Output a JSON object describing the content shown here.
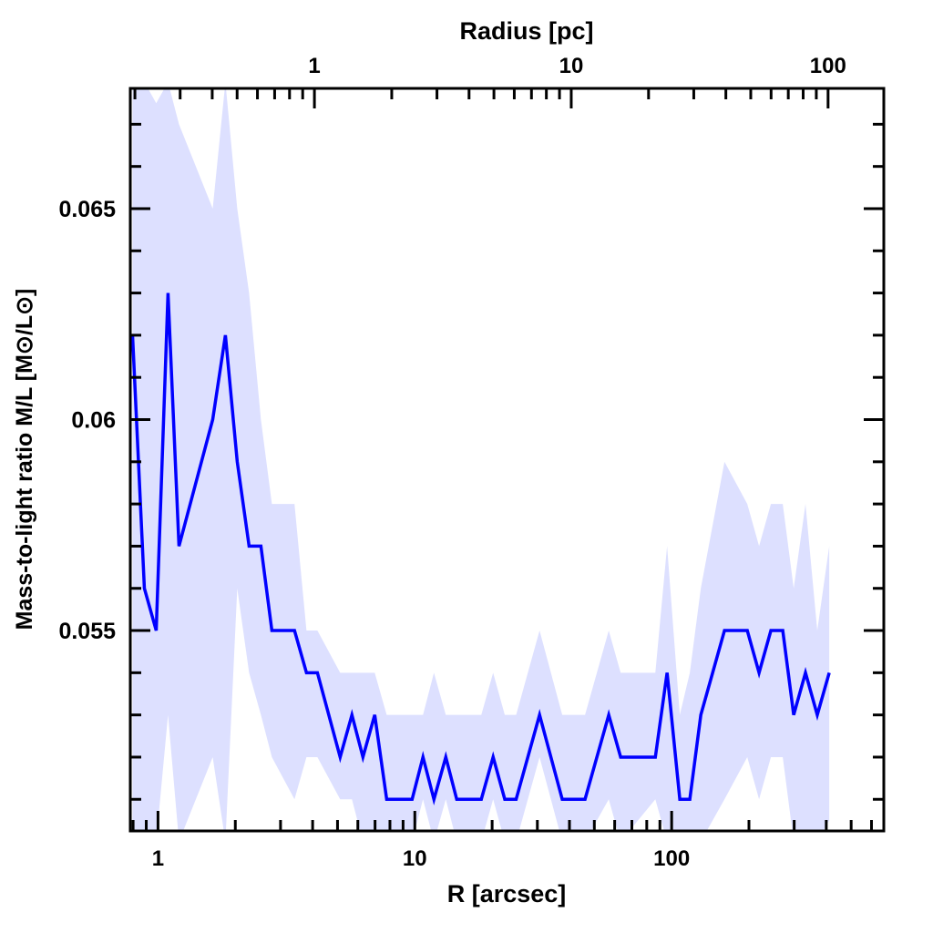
{
  "chart_data": {
    "type": "line",
    "title": "",
    "xlabel": "R [arcsec]",
    "ylabel": "Mass-to-light ratio M/L [M⊙/L⊙]",
    "top_xlabel": "Radius [pc]",
    "xscale": "log",
    "xlim": [
      0.78,
      670
    ],
    "ylim": [
      0.05025,
      0.06785
    ],
    "pc_per_arcsec": 0.246,
    "x_ticklabels": [
      {
        "value": 1,
        "label": "1"
      },
      {
        "value": 10,
        "label": "10"
      },
      {
        "value": 100,
        "label": "100"
      }
    ],
    "top_ticklabels": [
      {
        "value": 1,
        "label": "1"
      },
      {
        "value": 10,
        "label": "10"
      },
      {
        "value": 100,
        "label": "100"
      }
    ],
    "y_ticklabels": [
      {
        "value": 0.055,
        "label": "0.055"
      },
      {
        "value": 0.06,
        "label": "0.06"
      },
      {
        "value": 0.065,
        "label": "0.065"
      }
    ],
    "y_minor_step": 0.001,
    "line_color": "#0000ff",
    "band_color": "#dde0ff",
    "series": [
      {
        "name": "M/L",
        "x": [
          0.796,
          0.885,
          0.984,
          1.094,
          1.207,
          1.633,
          1.83,
          2.035,
          2.263,
          2.516,
          2.776,
          3.4,
          3.785,
          4.175,
          5.12,
          5.69,
          6.28,
          6.98,
          7.77,
          9.76,
          10.76,
          11.87,
          13.2,
          14.56,
          18.15,
          20.18,
          22.4,
          24.8,
          30.6,
          37.5,
          46.0,
          56.9,
          63.3,
          86.4,
          96.0,
          107.6,
          117.7,
          129.9,
          160.6,
          197.0,
          219,
          243.5,
          270.8,
          298.7,
          332,
          369,
          410.8
        ],
        "y": [
          0.062,
          0.056,
          0.055,
          0.063,
          0.057,
          0.06,
          0.062,
          0.059,
          0.057,
          0.057,
          0.055,
          0.055,
          0.054,
          0.054,
          0.052,
          0.053,
          0.052,
          0.053,
          0.051,
          0.051,
          0.052,
          0.051,
          0.052,
          0.051,
          0.051,
          0.052,
          0.051,
          0.051,
          0.053,
          0.051,
          0.051,
          0.053,
          0.052,
          0.052,
          0.054,
          0.051,
          0.051,
          0.053,
          0.055,
          0.055,
          0.054,
          0.055,
          0.055,
          0.053,
          0.054,
          0.053,
          0.054
        ],
        "upper": [
          0.068,
          0.068,
          0.0675,
          0.068,
          0.067,
          0.065,
          0.068,
          0.065,
          0.063,
          0.06,
          0.058,
          0.058,
          0.055,
          0.055,
          0.054,
          0.054,
          0.054,
          0.054,
          0.053,
          0.053,
          0.053,
          0.054,
          0.053,
          0.053,
          0.053,
          0.054,
          0.053,
          0.053,
          0.055,
          0.053,
          0.053,
          0.055,
          0.054,
          0.054,
          0.057,
          0.053,
          0.054,
          0.056,
          0.059,
          0.058,
          0.057,
          0.058,
          0.058,
          0.056,
          0.058,
          0.055,
          0.057
        ],
        "lower": [
          0.05,
          0.05,
          0.05,
          0.053,
          0.05,
          0.052,
          0.05,
          0.056,
          0.054,
          0.053,
          0.052,
          0.051,
          0.052,
          0.052,
          0.051,
          0.051,
          0.05,
          0.05,
          0.05,
          0.05,
          0.051,
          0.05,
          0.051,
          0.05,
          0.05,
          0.051,
          0.05,
          0.05,
          0.052,
          0.05,
          0.05,
          0.051,
          0.05,
          0.051,
          0.05,
          0.05,
          0.05,
          0.05,
          0.051,
          0.052,
          0.051,
          0.052,
          0.052,
          0.05,
          0.05,
          0.05,
          0.0505
        ]
      }
    ]
  }
}
